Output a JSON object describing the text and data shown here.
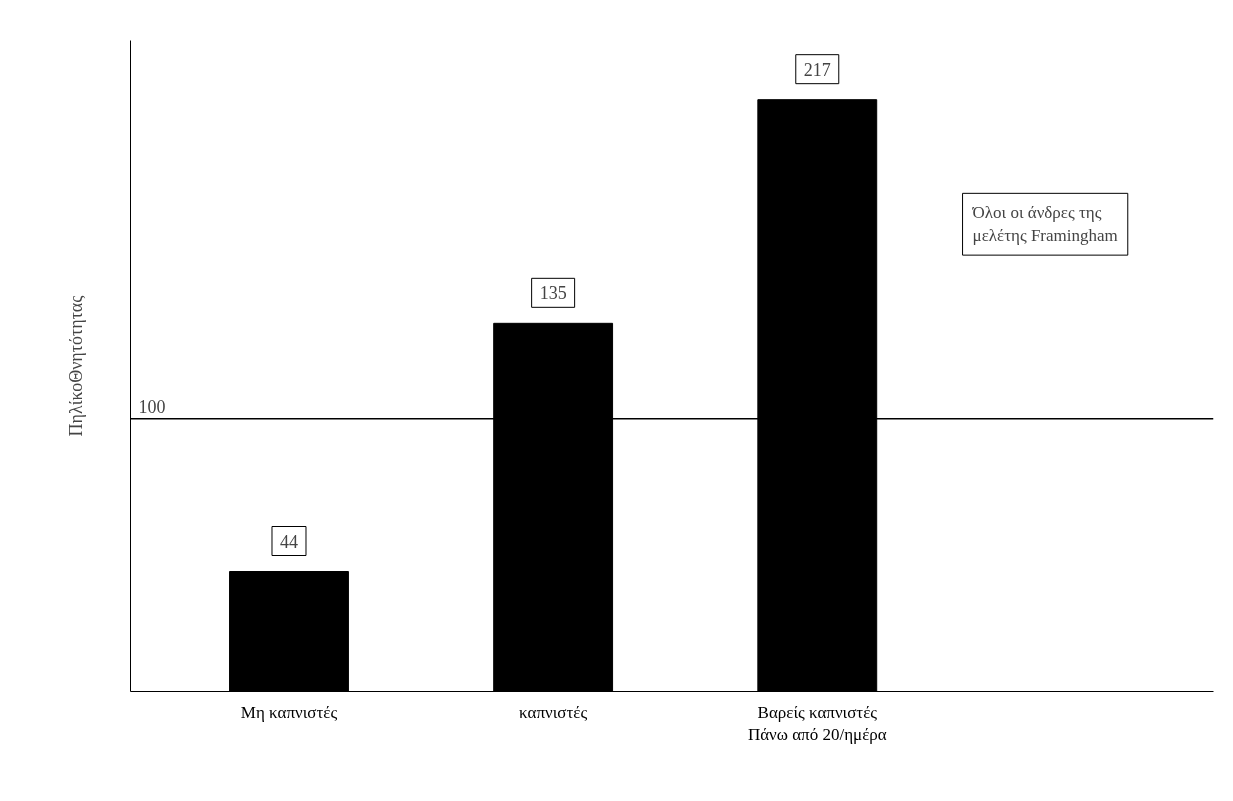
{
  "chart_data": {
    "type": "bar",
    "ylabel": "ΠηλίκοΘνητότητας",
    "categories": [
      "Μη καπνιστές",
      "καπνιστές",
      "Βαρείς καπνιστές\nΠάνω από 20/ημέρα"
    ],
    "values": [
      44,
      135,
      217
    ],
    "color": "#000000",
    "data_labels": true,
    "grid": false,
    "ref_lines": [
      {
        "axis": "y",
        "value": 100,
        "label": "100",
        "color": "#000000"
      }
    ],
    "annotations": [
      "Όλοι οι άνδρες της\nμελέτης Framingham"
    ]
  }
}
